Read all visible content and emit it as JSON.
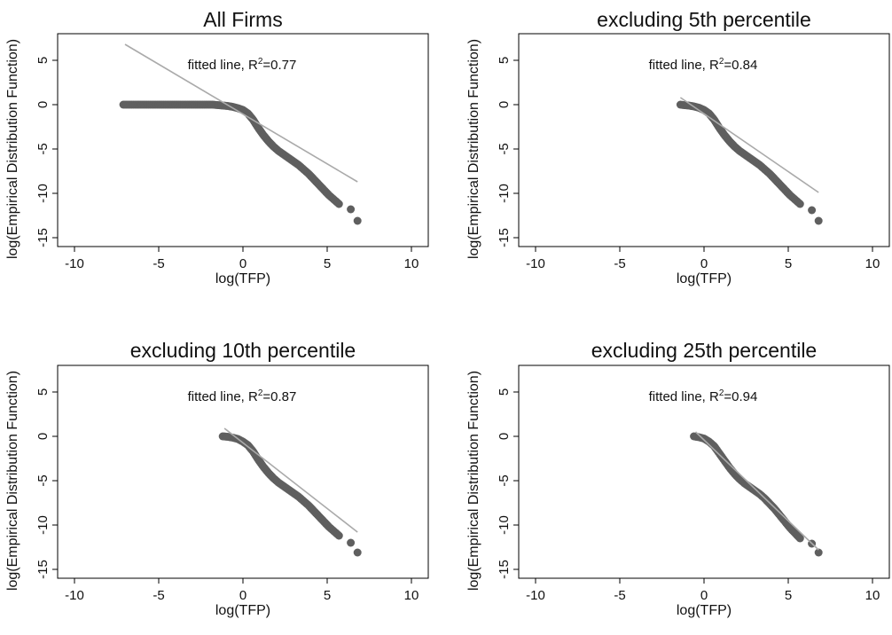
{
  "chart_data": [
    {
      "type": "scatter",
      "title": "All Firms",
      "xlabel": "log(TFP)",
      "ylabel": "log(Empirical Distribution Function)",
      "annotation_prefix": "fitted line, R",
      "annotation_sup": "2",
      "annotation_value": "=0.77",
      "xlim": [
        -11,
        11
      ],
      "ylim": [
        -16,
        8
      ],
      "xticks": [
        -10,
        -5,
        0,
        5,
        10
      ],
      "yticks": [
        5,
        0,
        -5,
        -10,
        -15
      ],
      "fitted_line": {
        "x": [
          -7.0,
          6.8
        ],
        "y": [
          6.8,
          -8.7
        ]
      },
      "points": [
        [
          -7.1,
          0.0
        ],
        [
          -6.3,
          0.0
        ],
        [
          -6.0,
          0.0
        ],
        [
          -5.7,
          0.0
        ],
        [
          -5.4,
          0.0
        ],
        [
          -5.1,
          0.0
        ],
        [
          -4.8,
          0.0
        ],
        [
          -4.5,
          0.0
        ],
        [
          -4.2,
          0.0
        ],
        [
          -3.9,
          0.0
        ],
        [
          -3.6,
          0.0
        ],
        [
          -3.3,
          0.0
        ],
        [
          -3.0,
          0.0
        ],
        [
          -2.7,
          0.0
        ],
        [
          -2.4,
          0.0
        ],
        [
          -2.1,
          0.0
        ],
        [
          -1.8,
          0.0
        ],
        [
          -1.5,
          -0.05
        ],
        [
          -1.2,
          -0.1
        ],
        [
          -0.9,
          -0.15
        ],
        [
          -0.6,
          -0.25
        ],
        [
          -0.3,
          -0.4
        ],
        [
          0.0,
          -0.6
        ],
        [
          0.3,
          -1.0
        ],
        [
          0.6,
          -1.7
        ],
        [
          0.9,
          -2.6
        ],
        [
          1.2,
          -3.4
        ],
        [
          1.5,
          -4.1
        ],
        [
          1.8,
          -4.7
        ],
        [
          2.1,
          -5.2
        ],
        [
          2.4,
          -5.6
        ],
        [
          2.7,
          -6.0
        ],
        [
          3.0,
          -6.4
        ],
        [
          3.3,
          -6.8
        ],
        [
          3.6,
          -7.3
        ],
        [
          3.9,
          -7.8
        ],
        [
          4.2,
          -8.4
        ],
        [
          4.5,
          -9.0
        ],
        [
          4.8,
          -9.6
        ],
        [
          5.1,
          -10.2
        ],
        [
          5.4,
          -10.7
        ],
        [
          5.7,
          -11.2
        ],
        [
          6.4,
          -11.8
        ],
        [
          6.8,
          -13.1
        ]
      ]
    },
    {
      "type": "scatter",
      "title": "excluding 5th percentile",
      "xlabel": "log(TFP)",
      "ylabel": "log(Empirical Distribution Function)",
      "annotation_prefix": "fitted line, R",
      "annotation_sup": "2",
      "annotation_value": "=0.84",
      "xlim": [
        -11,
        11
      ],
      "ylim": [
        -16,
        8
      ],
      "xticks": [
        -10,
        -5,
        0,
        5,
        10
      ],
      "yticks": [
        5,
        0,
        -5,
        -10,
        -15
      ],
      "fitted_line": {
        "x": [
          -1.4,
          6.8
        ],
        "y": [
          0.8,
          -9.9
        ]
      },
      "points": [
        [
          -1.4,
          0.0
        ],
        [
          -1.2,
          -0.05
        ],
        [
          -0.9,
          -0.1
        ],
        [
          -0.6,
          -0.2
        ],
        [
          -0.3,
          -0.35
        ],
        [
          0.0,
          -0.6
        ],
        [
          0.3,
          -1.0
        ],
        [
          0.6,
          -1.7
        ],
        [
          0.9,
          -2.6
        ],
        [
          1.2,
          -3.4
        ],
        [
          1.5,
          -4.1
        ],
        [
          1.8,
          -4.7
        ],
        [
          2.1,
          -5.2
        ],
        [
          2.4,
          -5.6
        ],
        [
          2.7,
          -6.0
        ],
        [
          3.0,
          -6.4
        ],
        [
          3.3,
          -6.8
        ],
        [
          3.6,
          -7.3
        ],
        [
          3.9,
          -7.8
        ],
        [
          4.2,
          -8.4
        ],
        [
          4.5,
          -9.0
        ],
        [
          4.8,
          -9.6
        ],
        [
          5.1,
          -10.2
        ],
        [
          5.4,
          -10.7
        ],
        [
          5.7,
          -11.2
        ],
        [
          6.4,
          -11.9
        ],
        [
          6.8,
          -13.1
        ]
      ]
    },
    {
      "type": "scatter",
      "title": "excluding 10th percentile",
      "xlabel": "log(TFP)",
      "ylabel": "log(Empirical Distribution Function)",
      "annotation_prefix": "fitted line, R",
      "annotation_sup": "2",
      "annotation_value": "=0.87",
      "xlim": [
        -11,
        11
      ],
      "ylim": [
        -16,
        8
      ],
      "xticks": [
        -10,
        -5,
        0,
        5,
        10
      ],
      "yticks": [
        5,
        0,
        -5,
        -10,
        -15
      ],
      "fitted_line": {
        "x": [
          -1.1,
          6.8
        ],
        "y": [
          0.9,
          -10.8
        ]
      },
      "points": [
        [
          -1.2,
          0.0
        ],
        [
          -0.9,
          -0.05
        ],
        [
          -0.6,
          -0.15
        ],
        [
          -0.3,
          -0.3
        ],
        [
          0.0,
          -0.6
        ],
        [
          0.3,
          -1.0
        ],
        [
          0.6,
          -1.7
        ],
        [
          0.9,
          -2.6
        ],
        [
          1.2,
          -3.4
        ],
        [
          1.5,
          -4.1
        ],
        [
          1.8,
          -4.7
        ],
        [
          2.1,
          -5.2
        ],
        [
          2.4,
          -5.6
        ],
        [
          2.7,
          -6.0
        ],
        [
          3.0,
          -6.4
        ],
        [
          3.3,
          -6.8
        ],
        [
          3.6,
          -7.3
        ],
        [
          3.9,
          -7.8
        ],
        [
          4.2,
          -8.4
        ],
        [
          4.5,
          -9.0
        ],
        [
          4.8,
          -9.6
        ],
        [
          5.1,
          -10.2
        ],
        [
          5.4,
          -10.7
        ],
        [
          5.7,
          -11.2
        ],
        [
          6.4,
          -12.0
        ],
        [
          6.8,
          -13.1
        ]
      ]
    },
    {
      "type": "scatter",
      "title": "excluding 25th percentile",
      "xlabel": "log(TFP)",
      "ylabel": "log(Empirical Distribution Function)",
      "annotation_prefix": "fitted line, R",
      "annotation_sup": "2",
      "annotation_value": "=0.94",
      "xlim": [
        -11,
        11
      ],
      "ylim": [
        -16,
        8
      ],
      "xticks": [
        -10,
        -5,
        0,
        5,
        10
      ],
      "yticks": [
        5,
        0,
        -5,
        -10,
        -15
      ],
      "fitted_line": {
        "x": [
          -0.5,
          6.8
        ],
        "y": [
          0.5,
          -12.8
        ]
      },
      "points": [
        [
          -0.6,
          0.0
        ],
        [
          -0.3,
          -0.1
        ],
        [
          0.0,
          -0.25
        ],
        [
          0.3,
          -0.6
        ],
        [
          0.6,
          -1.1
        ],
        [
          0.9,
          -1.9
        ],
        [
          1.2,
          -2.7
        ],
        [
          1.5,
          -3.5
        ],
        [
          1.8,
          -4.2
        ],
        [
          2.1,
          -4.8
        ],
        [
          2.4,
          -5.3
        ],
        [
          2.7,
          -5.7
        ],
        [
          3.0,
          -6.1
        ],
        [
          3.3,
          -6.5
        ],
        [
          3.6,
          -7.0
        ],
        [
          3.9,
          -7.6
        ],
        [
          4.2,
          -8.2
        ],
        [
          4.5,
          -8.9
        ],
        [
          4.8,
          -9.6
        ],
        [
          5.1,
          -10.3
        ],
        [
          5.4,
          -10.9
        ],
        [
          5.7,
          -11.5
        ],
        [
          6.4,
          -12.1
        ],
        [
          6.8,
          -13.1
        ]
      ]
    }
  ]
}
